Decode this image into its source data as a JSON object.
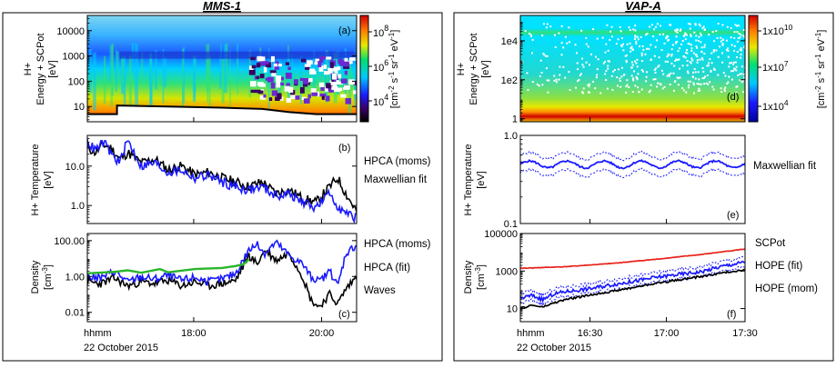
{
  "colors": {
    "black": "#000000",
    "blue": "#1a1aff",
    "green": "#2ab52a",
    "red": "#e8231c"
  },
  "chart_data": [
    {
      "type": "heatmap",
      "group_title": "MMS-1",
      "panel_label": "(a)",
      "ylabel_lines": [
        "H+",
        "Energy + SCPot",
        "[eV]"
      ],
      "yscale": "log",
      "yticks": [
        "10000",
        "1000",
        "100",
        "10"
      ],
      "yticks_values": [
        10000,
        1000,
        100,
        10
      ],
      "ylim": [
        2.5,
        40000
      ],
      "colorbar": {
        "label": "[cm-2 s-1 sr-1 eV-1]",
        "label_main": "[cm",
        "label_sup1": "-2",
        "label_s": " s",
        "label_sup2": "-1",
        "label_sr": " sr",
        "label_sup3": "-1",
        "label_ev": " eV",
        "label_sup4": "-1",
        "label_end": "]",
        "ticks": [
          "10",
          "10",
          "10"
        ],
        "tick_exponents": [
          "8",
          "6",
          "4"
        ],
        "range": [
          100,
          1000000000
        ],
        "scale": "log"
      },
      "low_energy_cutoff_eV": [
        [
          0,
          5
        ],
        [
          0.11,
          5
        ],
        [
          0.11,
          11
        ],
        [
          0.3,
          10
        ],
        [
          0.5,
          9
        ],
        [
          0.65,
          8
        ],
        [
          0.75,
          6
        ],
        [
          0.85,
          5
        ],
        [
          1.0,
          5
        ]
      ]
    },
    {
      "type": "line",
      "panel_label": "(b)",
      "ylabel_lines": [
        "H+ Temperature",
        "[eV]"
      ],
      "yscale": "log",
      "yticks": [
        "10.0",
        "1.0"
      ],
      "yticks_values": [
        10,
        1
      ],
      "ylim": [
        0.35,
        60
      ],
      "series": [
        {
          "name": "HPCA (moms)",
          "color": "black",
          "points": [
            [
              0,
              30
            ],
            [
              0.03,
              22
            ],
            [
              0.06,
              35
            ],
            [
              0.09,
              28
            ],
            [
              0.12,
              15
            ],
            [
              0.15,
              22
            ],
            [
              0.2,
              12
            ],
            [
              0.25,
              15
            ],
            [
              0.3,
              8
            ],
            [
              0.35,
              10
            ],
            [
              0.4,
              6
            ],
            [
              0.45,
              7
            ],
            [
              0.5,
              5
            ],
            [
              0.55,
              4
            ],
            [
              0.6,
              3
            ],
            [
              0.65,
              4
            ],
            [
              0.7,
              2
            ],
            [
              0.75,
              2.5
            ],
            [
              0.8,
              1.5
            ],
            [
              0.85,
              1.2
            ],
            [
              0.9,
              3
            ],
            [
              0.93,
              5
            ],
            [
              0.96,
              2
            ],
            [
              1.0,
              0.7
            ]
          ]
        },
        {
          "name": "Maxwellian fit",
          "color": "blue",
          "points": [
            [
              0,
              40
            ],
            [
              0.03,
              25
            ],
            [
              0.06,
              40
            ],
            [
              0.09,
              20
            ],
            [
              0.12,
              12
            ],
            [
              0.15,
              45
            ],
            [
              0.2,
              10
            ],
            [
              0.25,
              12
            ],
            [
              0.3,
              7
            ],
            [
              0.35,
              8
            ],
            [
              0.4,
              5
            ],
            [
              0.45,
              6
            ],
            [
              0.5,
              4
            ],
            [
              0.55,
              3
            ],
            [
              0.6,
              2.5
            ],
            [
              0.65,
              3
            ],
            [
              0.7,
              1.8
            ],
            [
              0.75,
              2
            ],
            [
              0.8,
              1.2
            ],
            [
              0.85,
              0.9
            ],
            [
              0.9,
              2
            ],
            [
              0.93,
              1
            ],
            [
              0.96,
              0.6
            ],
            [
              1.0,
              0.5
            ]
          ]
        }
      ]
    },
    {
      "type": "line",
      "panel_label": "(c)",
      "ylabel_lines": [
        "Density",
        "[cm-3]"
      ],
      "ylabel_unit_main": "[cm",
      "ylabel_unit_sup": "-3",
      "ylabel_unit_end": "]",
      "yscale": "log",
      "yticks": [
        "100.00",
        "1.00",
        "0.01"
      ],
      "yticks_values": [
        100,
        1,
        0.01
      ],
      "ylim": [
        0.003,
        250
      ],
      "xticks": [
        "hhmm",
        "18:00",
        "20:00"
      ],
      "xticks_pos": [
        0,
        0.395,
        0.87
      ],
      "date": "22 October 2015",
      "series": [
        {
          "name": "HPCA (moms)",
          "color": "black",
          "points": [
            [
              0,
              0.5
            ],
            [
              0.05,
              0.4
            ],
            [
              0.1,
              0.8
            ],
            [
              0.15,
              0.3
            ],
            [
              0.2,
              0.5
            ],
            [
              0.25,
              0.4
            ],
            [
              0.3,
              0.6
            ],
            [
              0.35,
              0.3
            ],
            [
              0.4,
              0.5
            ],
            [
              0.45,
              0.3
            ],
            [
              0.5,
              0.4
            ],
            [
              0.55,
              0.6
            ],
            [
              0.6,
              15
            ],
            [
              0.63,
              5
            ],
            [
              0.66,
              30
            ],
            [
              0.7,
              8
            ],
            [
              0.75,
              20
            ],
            [
              0.8,
              1
            ],
            [
              0.83,
              0.05
            ],
            [
              0.86,
              0.02
            ],
            [
              0.9,
              0.1
            ],
            [
              0.93,
              0.03
            ],
            [
              0.96,
              0.2
            ],
            [
              1.0,
              1
            ]
          ]
        },
        {
          "name": "HPCA (fit)",
          "color": "blue",
          "points": [
            [
              0,
              1
            ],
            [
              0.05,
              0.8
            ],
            [
              0.1,
              2
            ],
            [
              0.15,
              0.5
            ],
            [
              0.2,
              1
            ],
            [
              0.25,
              0.7
            ],
            [
              0.3,
              1.2
            ],
            [
              0.35,
              0.6
            ],
            [
              0.4,
              0.9
            ],
            [
              0.45,
              0.5
            ],
            [
              0.5,
              0.7
            ],
            [
              0.55,
              1.5
            ],
            [
              0.6,
              30
            ],
            [
              0.63,
              60
            ],
            [
              0.66,
              20
            ],
            [
              0.7,
              80
            ],
            [
              0.75,
              15
            ],
            [
              0.8,
              5
            ],
            [
              0.83,
              1
            ],
            [
              0.86,
              0.5
            ],
            [
              0.9,
              2
            ],
            [
              0.93,
              0.3
            ],
            [
              0.96,
              20
            ],
            [
              1.0,
              60
            ]
          ]
        },
        {
          "name": "Waves",
          "color": "green",
          "points": [
            [
              0,
              1.5
            ],
            [
              0.1,
              1.8
            ],
            [
              0.15,
              2.2
            ],
            [
              0.2,
              1.6
            ],
            [
              0.27,
              2.6
            ],
            [
              0.3,
              1.7
            ],
            [
              0.4,
              2.6
            ],
            [
              0.5,
              3
            ],
            [
              0.55,
              3.8
            ],
            [
              0.58,
              4.8
            ],
            [
              0.6,
              9
            ]
          ]
        }
      ]
    },
    {
      "type": "heatmap",
      "group_title": "VAP-A",
      "panel_label": "(d)",
      "ylabel_lines": [
        "H+",
        "Energy + SCPot",
        "[eV]"
      ],
      "yscale": "log",
      "yticks": [
        "1e4",
        "1e2",
        "1"
      ],
      "yticks_values": [
        10000,
        100,
        1
      ],
      "ylim": [
        0.7,
        200000
      ],
      "colorbar": {
        "label": "[cm-2 s-1 sr-1 eV-1]",
        "ticks": [
          "1x10",
          "1x10",
          "1x10"
        ],
        "tick_exponents": [
          "10",
          "7",
          "4"
        ],
        "range": [
          3000,
          30000000000
        ],
        "scale": "log"
      }
    },
    {
      "type": "line",
      "panel_label": "(e)",
      "ylabel_lines": [
        "H+ Temperature",
        "[eV]"
      ],
      "yscale": "log",
      "yticks": [
        "1.0",
        "0.1"
      ],
      "yticks_values": [
        1,
        0.1
      ],
      "ylim": [
        0.1,
        1
      ],
      "series": [
        {
          "name": "Maxwellian fit",
          "color": "blue",
          "style": "solid-with-dotted-band",
          "center": 0.47,
          "band_ratio": 1.25
        }
      ]
    },
    {
      "type": "line",
      "panel_label": "(f)",
      "ylabel_lines": [
        "Density",
        "[cm-3]"
      ],
      "ylabel_unit_main": "[cm",
      "ylabel_unit_sup": "-3",
      "ylabel_unit_end": "]",
      "yscale": "log",
      "yticks": [
        "100000",
        "1000",
        "10"
      ],
      "yticks_values": [
        100000,
        1000,
        10
      ],
      "ylim": [
        2,
        100000
      ],
      "xticks": [
        "hhmm",
        "16:30",
        "17:00",
        "17:30"
      ],
      "xticks_pos": [
        0,
        0.31,
        0.65,
        1.0
      ],
      "date": "22 October 2015",
      "series": [
        {
          "name": "SCPot",
          "color": "red",
          "points": [
            [
              0,
              1400
            ],
            [
              0.2,
              1700
            ],
            [
              0.4,
              2500
            ],
            [
              0.6,
              4200
            ],
            [
              0.8,
              7500
            ],
            [
              1.0,
              15000
            ]
          ]
        },
        {
          "name": "HOPE (fit)",
          "color": "blue",
          "points": [
            [
              0,
              35
            ],
            [
              0.05,
              50
            ],
            [
              0.1,
              30
            ],
            [
              0.15,
              60
            ],
            [
              0.2,
              80
            ],
            [
              0.3,
              110
            ],
            [
              0.4,
              180
            ],
            [
              0.5,
              280
            ],
            [
              0.6,
              450
            ],
            [
              0.7,
              650
            ],
            [
              0.8,
              900
            ],
            [
              0.9,
              1800
            ],
            [
              1.0,
              3000
            ]
          ]
        },
        {
          "name": "HOPE (mom)",
          "color": "black",
          "points": [
            [
              0,
              10
            ],
            [
              0.05,
              15
            ],
            [
              0.1,
              12
            ],
            [
              0.15,
              20
            ],
            [
              0.2,
              30
            ],
            [
              0.3,
              50
            ],
            [
              0.4,
              80
            ],
            [
              0.5,
              130
            ],
            [
              0.6,
              220
            ],
            [
              0.7,
              330
            ],
            [
              0.8,
              500
            ],
            [
              0.9,
              800
            ],
            [
              1.0,
              1200
            ]
          ]
        }
      ]
    }
  ]
}
